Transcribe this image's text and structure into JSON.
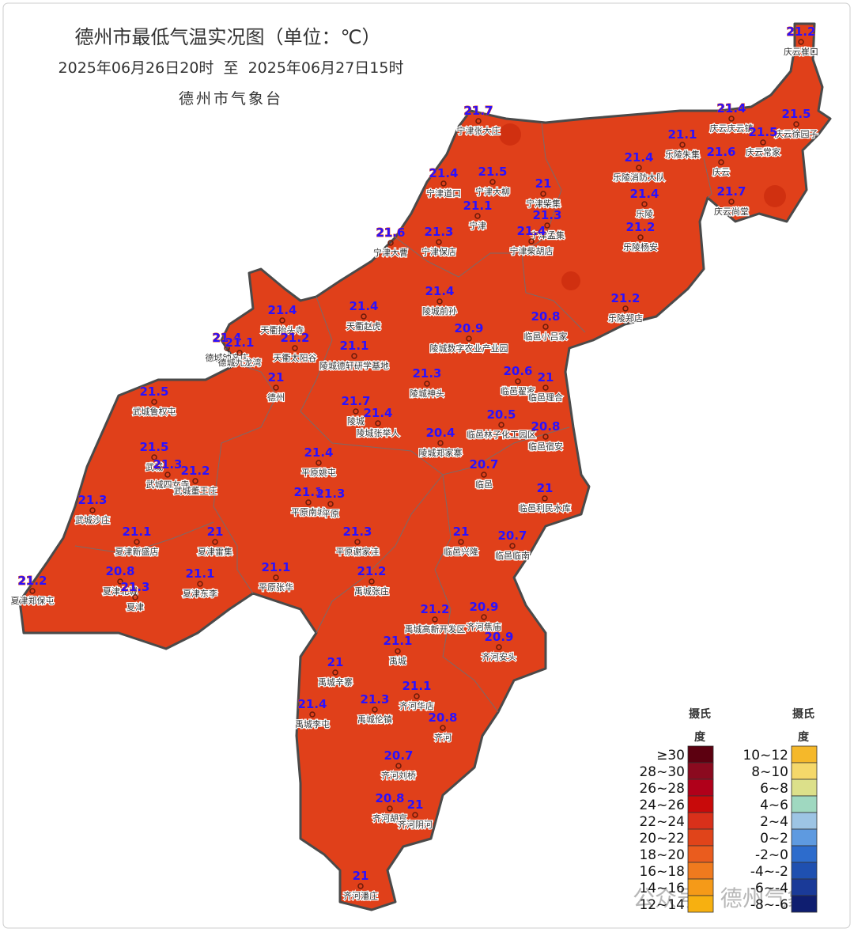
{
  "header": {
    "title": "德州市最低气温实况图（单位：℃）",
    "period": "2025年06月26日20时  至  2025年06月27日15时",
    "agency": "德州市气象台"
  },
  "stations": [
    {
      "name": "庆云崔口",
      "value": 21.2
    },
    {
      "name": "宁津张大庄",
      "value": 21.7
    },
    {
      "name": "庆云庆云镇",
      "value": 21.4
    },
    {
      "name": "庆云徐园子",
      "value": 21.5
    },
    {
      "name": "乐陵朱集",
      "value": 21.1
    },
    {
      "name": "庆云常家",
      "value": 21.5
    },
    {
      "name": "庆云",
      "value": 21.6
    },
    {
      "name": "乐陵消防大队",
      "value": 21.4
    },
    {
      "name": "宁津大柳",
      "value": 21.5
    },
    {
      "name": "宁津道口",
      "value": 21.4
    },
    {
      "name": "宁津柴集",
      "value": 21
    },
    {
      "name": "乐陵",
      "value": 21.4
    },
    {
      "name": "庆云尚堂",
      "value": 21.7
    },
    {
      "name": "宁津",
      "value": 21.1
    },
    {
      "name": "宁津孟集",
      "value": 21.3
    },
    {
      "name": "乐陵杨安",
      "value": 21.2
    },
    {
      "name": "宁津大曹",
      "value": 21.6
    },
    {
      "name": "宁津保店",
      "value": 21.3
    },
    {
      "name": "宁津柴胡店",
      "value": 21.4
    },
    {
      "name": "陵城前孙",
      "value": 21.4
    },
    {
      "name": "天衢赵虎",
      "value": 21.4
    },
    {
      "name": "天衢抬头寺",
      "value": 21.4
    },
    {
      "name": "乐陵郑店",
      "value": 21.2
    },
    {
      "name": "临邑小吕家",
      "value": 20.8
    },
    {
      "name": "陵城数字农业产业园",
      "value": 20.9
    },
    {
      "name": "德城钟辛庄",
      "value": 21.4
    },
    {
      "name": "德城九龙湾",
      "value": 21.1
    },
    {
      "name": "天衢太阳谷",
      "value": 21.2
    },
    {
      "name": "陵城德轩研学基地",
      "value": 21.1
    },
    {
      "name": "德州",
      "value": 21
    },
    {
      "name": "陵城神头",
      "value": 21.3
    },
    {
      "name": "临邑翟家",
      "value": 20.6
    },
    {
      "name": "临邑理合",
      "value": 21
    },
    {
      "name": "武城鲁权屯",
      "value": 21.5
    },
    {
      "name": "陵城",
      "value": 21.7
    },
    {
      "name": "陵城张举人",
      "value": 21.4
    },
    {
      "name": "临邑林子化工园区",
      "value": 20.5
    },
    {
      "name": "临邑宿安",
      "value": 20.8
    },
    {
      "name": "陵城郑家寨",
      "value": 20.4
    },
    {
      "name": "武城",
      "value": 21.5
    },
    {
      "name": "武城四女寺",
      "value": 21.3
    },
    {
      "name": "武城董王庄",
      "value": 21.2
    },
    {
      "name": "平原姚屯",
      "value": 21.4
    },
    {
      "name": "临邑",
      "value": 20.7
    },
    {
      "name": "武城沙庄",
      "value": 21.3
    },
    {
      "name": "平原南城",
      "value": 21.1
    },
    {
      "name": "平原",
      "value": 21.3
    },
    {
      "name": "临邑利民水库",
      "value": 21
    },
    {
      "name": "夏津新盛店",
      "value": 21.1
    },
    {
      "name": "夏津雷集",
      "value": 21
    },
    {
      "name": "平原谢家洼",
      "value": 21.3
    },
    {
      "name": "临邑兴隆",
      "value": 21
    },
    {
      "name": "临邑临南",
      "value": 20.7
    },
    {
      "name": "平原张华",
      "value": 21.1
    },
    {
      "name": "夏津北城",
      "value": 20.8
    },
    {
      "name": "夏津",
      "value": 21.3
    },
    {
      "name": "夏津东李",
      "value": 21.1
    },
    {
      "name": "禹城张庄",
      "value": 21.2
    },
    {
      "name": "夏津郑保屯",
      "value": 21.2
    },
    {
      "name": "禹城高新开发区",
      "value": 21.2
    },
    {
      "name": "齐河焦庙",
      "value": 20.9
    },
    {
      "name": "齐河安头",
      "value": 20.9
    },
    {
      "name": "禹城",
      "value": 21.1
    },
    {
      "name": "禹城辛寨",
      "value": 21
    },
    {
      "name": "齐河华店",
      "value": 21.1
    },
    {
      "name": "禹城李屯",
      "value": 21.4
    },
    {
      "name": "禹城伦镇",
      "value": 21.3
    },
    {
      "name": "齐河",
      "value": 20.8
    },
    {
      "name": "齐河刘桥",
      "value": 20.7
    },
    {
      "name": "齐河胡官",
      "value": 20.8
    },
    {
      "name": "齐河阴河",
      "value": 21
    },
    {
      "name": "齐河潘庄",
      "value": 21
    }
  ],
  "legend": {
    "left": {
      "heading": [
        "摄氏",
        "度"
      ],
      "items": [
        {
          "label": "≥30",
          "color": "#5c0010"
        },
        {
          "label": "28~30",
          "color": "#8b0a1f"
        },
        {
          "label": "26~28",
          "color": "#b0001a"
        },
        {
          "label": "24~26",
          "color": "#c80a0a"
        },
        {
          "label": "22~24",
          "color": "#d9301a"
        },
        {
          "label": "20~22",
          "color": "#e0441a"
        },
        {
          "label": "18~20",
          "color": "#ea5c1e"
        },
        {
          "label": "16~18",
          "color": "#f07a1e"
        },
        {
          "label": "14~16",
          "color": "#f59a18"
        },
        {
          "label": "12~14",
          "color": "#f7b010"
        }
      ]
    },
    "right": {
      "heading": [
        "摄氏",
        "度"
      ],
      "items": [
        {
          "label": "10~12",
          "color": "#f5b82a"
        },
        {
          "label": "8~10",
          "color": "#f5d86a"
        },
        {
          "label": "6~8",
          "color": "#dce08a"
        },
        {
          "label": "4~6",
          "color": "#9fd8c0"
        },
        {
          "label": "2~4",
          "color": "#9dc4e4"
        },
        {
          "label": "0~2",
          "color": "#5e9ae0"
        },
        {
          "label": "-2~0",
          "color": "#2d6ccc"
        },
        {
          "label": "-4~-2",
          "color": "#1f50b0"
        },
        {
          "label": "-6~-4",
          "color": "#1a3a98"
        },
        {
          "label": "-8~-6",
          "color": "#0f1e70"
        }
      ]
    }
  },
  "watermark": "公众号 · 德州气象"
}
